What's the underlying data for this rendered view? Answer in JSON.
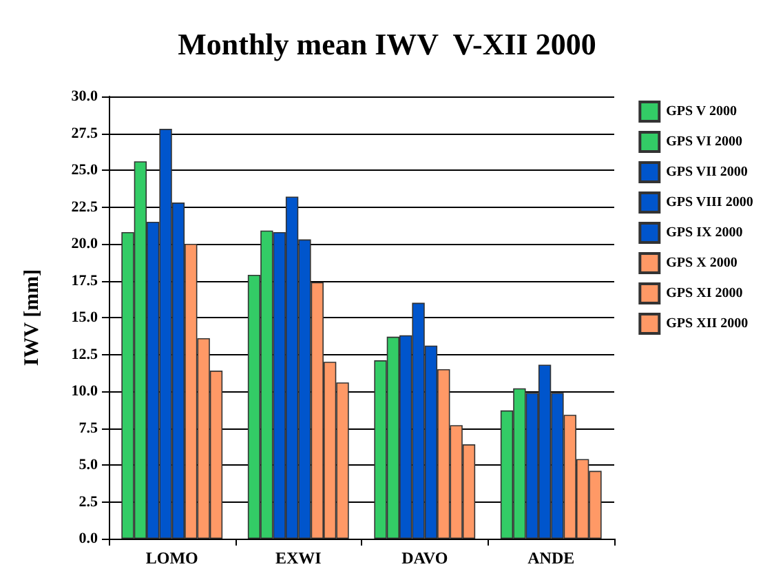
{
  "chart_data": {
    "type": "bar",
    "title": "Monthly mean IWV  V-XII 2000",
    "ylabel": "IWV [mm]",
    "categories": [
      "LOMO",
      "EXWI",
      "DAVO",
      "ANDE"
    ],
    "series": [
      {
        "name": "GPS V 2000",
        "color": "#33cc66",
        "values": [
          20.8,
          17.9,
          12.1,
          8.7
        ]
      },
      {
        "name": "GPS VI 2000",
        "color": "#33cc66",
        "values": [
          25.6,
          20.9,
          13.7,
          10.2
        ]
      },
      {
        "name": "GPS VII 2000",
        "color": "#0055cc",
        "values": [
          21.5,
          20.8,
          13.8,
          9.9
        ]
      },
      {
        "name": "GPS VIII 2000",
        "color": "#0055cc",
        "values": [
          27.8,
          23.2,
          16.0,
          11.8
        ]
      },
      {
        "name": "GPS IX 2000",
        "color": "#0055cc",
        "values": [
          22.8,
          20.3,
          13.1,
          9.9
        ]
      },
      {
        "name": "GPS X 2000",
        "color": "#ff9966",
        "values": [
          20.0,
          17.4,
          11.5,
          8.4
        ]
      },
      {
        "name": "GPS XI 2000",
        "color": "#ff9966",
        "values": [
          13.6,
          12.0,
          7.7,
          5.4
        ]
      },
      {
        "name": "GPS XII 2000",
        "color": "#ff9966",
        "values": [
          11.4,
          10.6,
          6.4,
          4.6
        ]
      }
    ],
    "ylim": [
      0,
      30
    ],
    "yticks": [
      {
        "value": 0,
        "label": "0.0"
      },
      {
        "value": 2.5,
        "label": "2.5"
      },
      {
        "value": 5,
        "label": "5.0"
      },
      {
        "value": 7.5,
        "label": "7.5"
      },
      {
        "value": 10,
        "label": "10.0"
      },
      {
        "value": 12.5,
        "label": "12.5"
      },
      {
        "value": 15,
        "label": "15.0"
      },
      {
        "value": 17.5,
        "label": "17.5"
      },
      {
        "value": 20,
        "label": "20.0"
      },
      {
        "value": 22.5,
        "label": "22.5"
      },
      {
        "value": 25,
        "label": "25.0"
      },
      {
        "value": 27.5,
        "label": "27.5"
      },
      {
        "value": 30,
        "label": "30.0"
      }
    ],
    "grid": "y",
    "legend": "right"
  }
}
